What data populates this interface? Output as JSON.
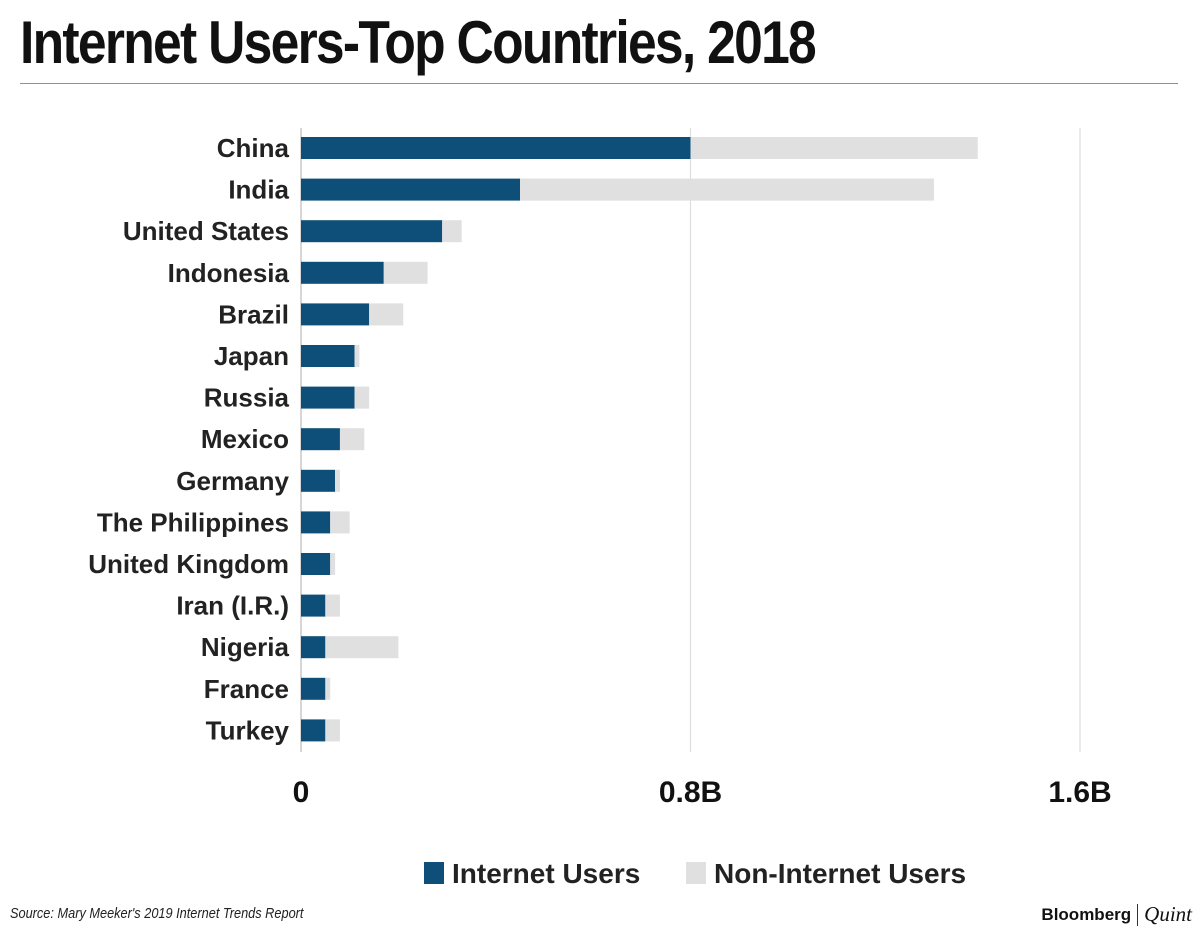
{
  "chart_data": {
    "type": "bar",
    "orientation": "horizontal",
    "stacked": true,
    "title": "Internet Users-Top Countries, 2018",
    "categories": [
      "China",
      "India",
      "United States",
      "Indonesia",
      "Brazil",
      "Japan",
      "Russia",
      "Mexico",
      "Germany",
      "The Philippines",
      "United Kingdom",
      "Iran (I.R.)",
      "Nigeria",
      "France",
      "Turkey"
    ],
    "series": [
      {
        "name": "Internet Users",
        "color": "#0d4f78",
        "values": [
          0.8,
          0.45,
          0.29,
          0.17,
          0.14,
          0.11,
          0.11,
          0.08,
          0.07,
          0.06,
          0.06,
          0.05,
          0.05,
          0.05,
          0.05
        ]
      },
      {
        "name": "Non-Internet Users",
        "color": "#e0e0e0",
        "values": [
          0.59,
          0.85,
          0.04,
          0.09,
          0.07,
          0.01,
          0.03,
          0.05,
          0.01,
          0.04,
          0.01,
          0.03,
          0.15,
          0.01,
          0.03
        ]
      }
    ],
    "xlim": [
      0,
      1.6
    ],
    "xticks": [
      {
        "value": 0,
        "label": "0"
      },
      {
        "value": 0.8,
        "label": "0.8B"
      },
      {
        "value": 1.6,
        "label": "1.6B"
      }
    ],
    "xlabel": "",
    "ylabel": "",
    "grid": "vertical",
    "legend": "bottom"
  },
  "footer": {
    "source": "Source: Mary Meeker's 2019 Internet Trends Report",
    "logo_left": "Bloomberg",
    "logo_right": "Quint"
  }
}
